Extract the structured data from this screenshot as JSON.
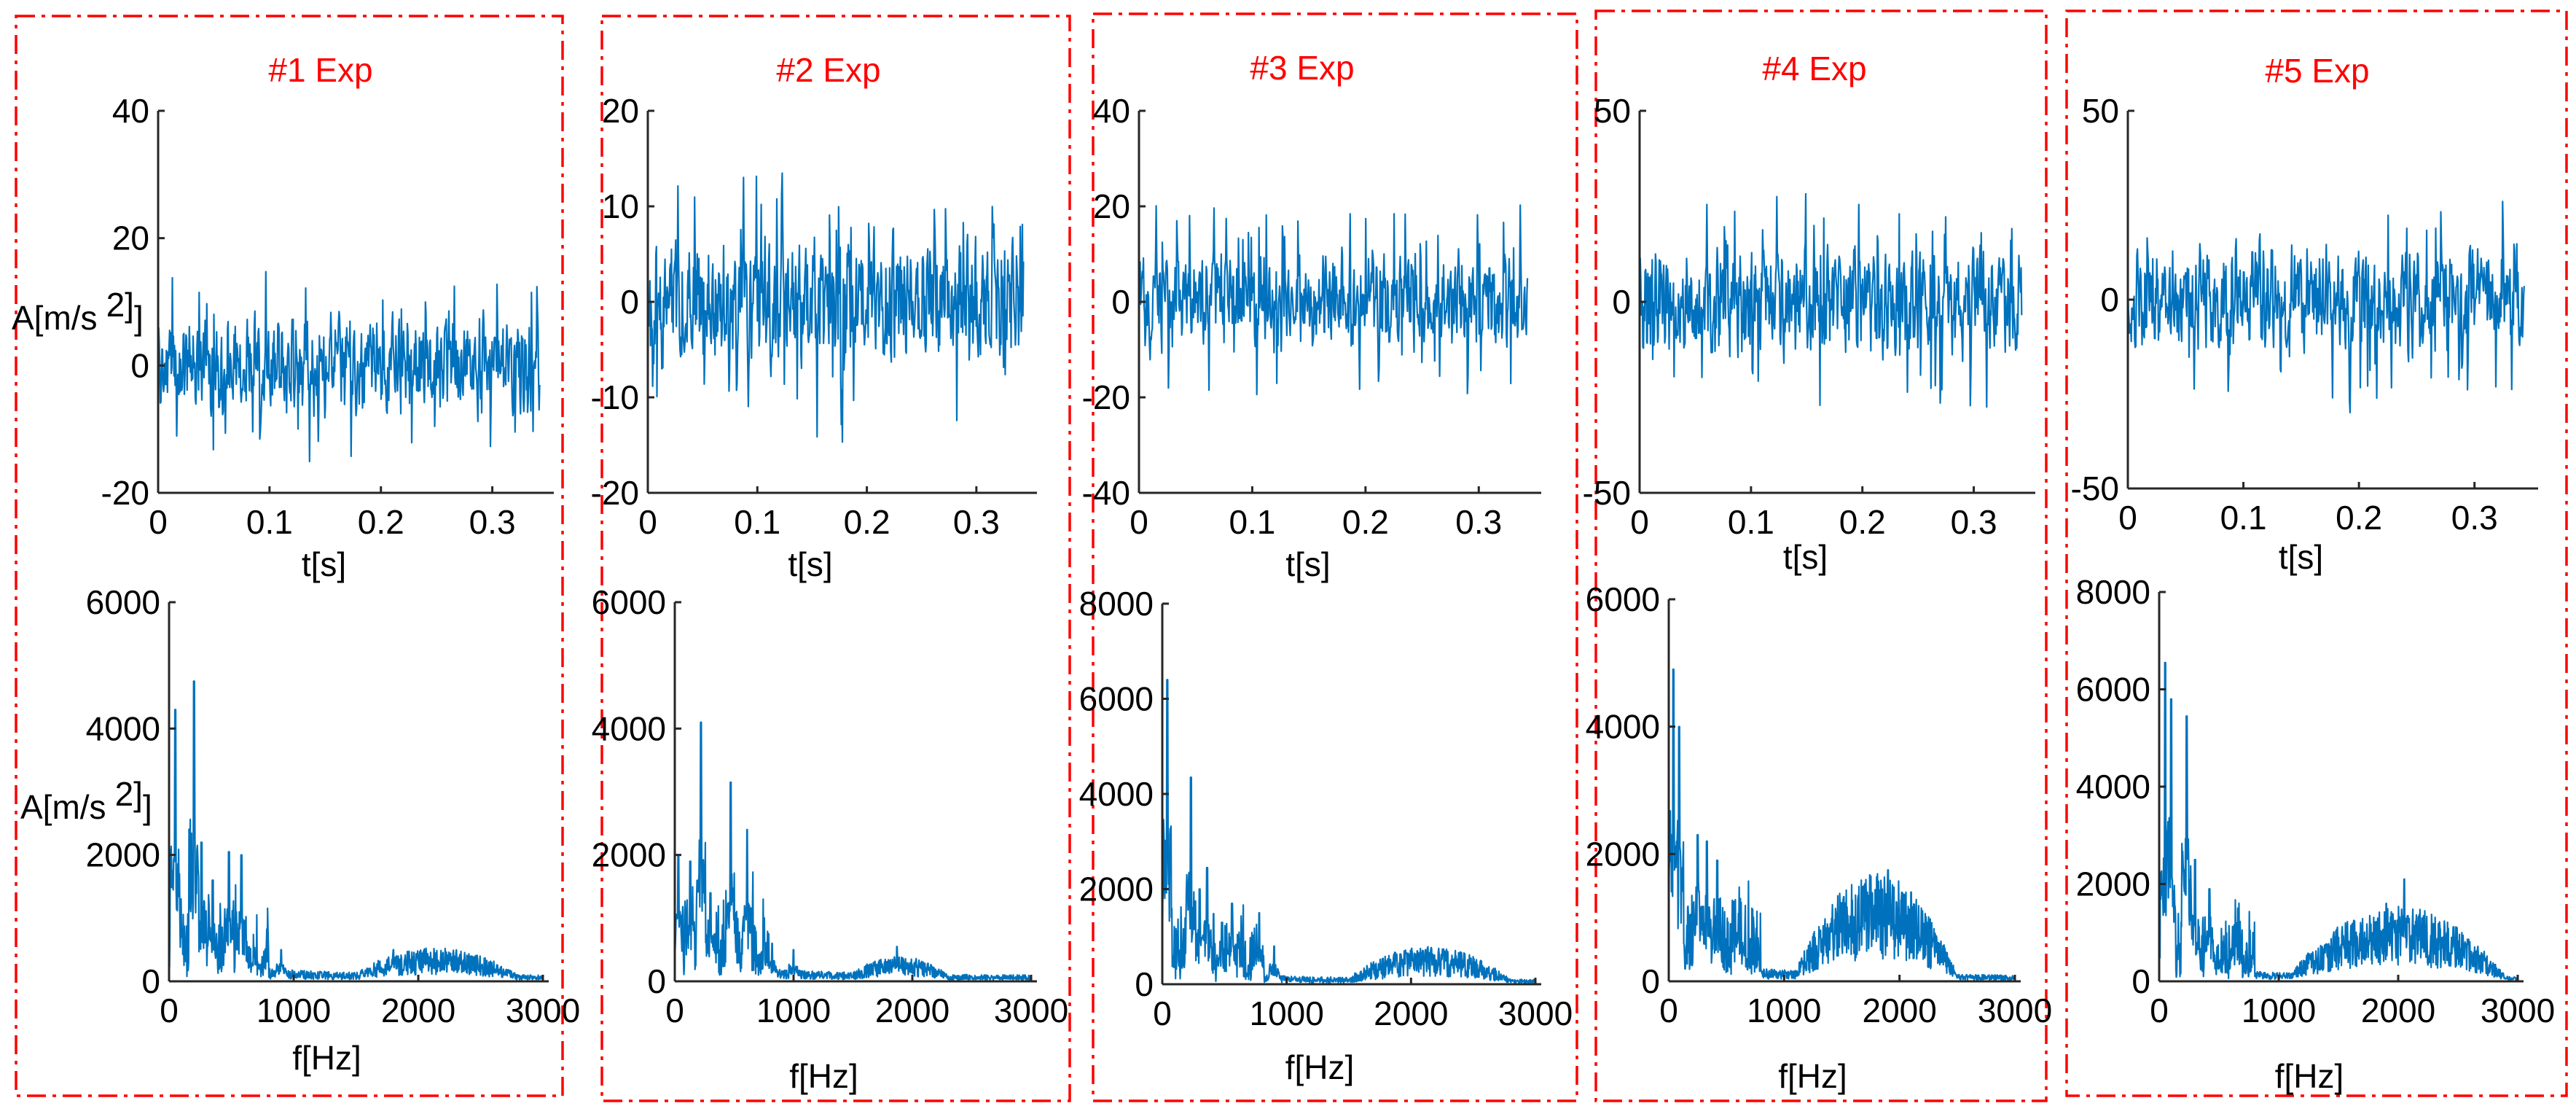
{
  "colors": {
    "trace": "#0072bd",
    "frame": "#ff0000",
    "title": "#ff0000",
    "axis": "#262626"
  },
  "chart_data": [
    {
      "title": "#1 Exp",
      "time": {
        "type": "line",
        "xlabel": "t[s]",
        "ylabel": "A[m/s 2]",
        "xlim": [
          0,
          0.35
        ],
        "ylim": [
          -20,
          40
        ],
        "xticks": [
          "0",
          "0.1",
          "0.2",
          "0.3"
        ],
        "yticks": [
          "40",
          "20",
          "0",
          "-20"
        ],
        "trend": {
          "mean": 0,
          "amp": 16
        }
      },
      "spectrum": {
        "type": "line",
        "xlabel": "f[Hz]",
        "ylabel": "A[m/s 2]",
        "xlim": [
          0,
          3000
        ],
        "ylim": [
          0,
          6000
        ],
        "xticks": [
          "0",
          "1000",
          "2000",
          "3000"
        ],
        "yticks": [
          "6000",
          "4000",
          "2000",
          "0"
        ],
        "peaks": [
          [
            50,
            4300
          ],
          [
            200,
            4750
          ],
          [
            260,
            2200
          ],
          [
            350,
            1600
          ],
          [
            480,
            2050
          ],
          [
            580,
            2000
          ],
          [
            900,
            500
          ],
          [
            1800,
            500
          ],
          [
            2100,
            350
          ]
        ],
        "band": {
          "from": 1500,
          "to": 2800,
          "level": 280
        }
      }
    },
    {
      "title": "#2 Exp",
      "time": {
        "type": "line",
        "xlabel": "t[s]",
        "ylabel": "",
        "xlim": [
          0,
          0.35
        ],
        "ylim": [
          -20,
          20
        ],
        "xticks": [
          "0",
          "0.1",
          "0.2",
          "0.3"
        ],
        "yticks": [
          "20",
          "10",
          "0",
          "-10",
          "-20"
        ],
        "trend": {
          "mean": 0,
          "amp": 14
        }
      },
      "spectrum": {
        "type": "line",
        "xlabel": "f[Hz]",
        "ylabel": "",
        "xlim": [
          0,
          3000
        ],
        "ylim": [
          0,
          6000
        ],
        "xticks": [
          "0",
          "1000",
          "2000",
          "3000"
        ],
        "yticks": [
          "6000",
          "4000",
          "2000",
          "0"
        ],
        "peaks": [
          [
            30,
            2000
          ],
          [
            130,
            1900
          ],
          [
            220,
            4100
          ],
          [
            300,
            1400
          ],
          [
            470,
            3150
          ],
          [
            610,
            2400
          ],
          [
            820,
            600
          ],
          [
            1000,
            500
          ],
          [
            1870,
            550
          ]
        ],
        "band": {
          "from": 1500,
          "to": 2300,
          "level": 180
        }
      }
    },
    {
      "title": "#3 Exp",
      "time": {
        "type": "line",
        "xlabel": "t[s]",
        "ylabel": "",
        "xlim": [
          0,
          0.35
        ],
        "ylim": [
          -40,
          40
        ],
        "xticks": [
          "0",
          "0.1",
          "0.2",
          "0.3"
        ],
        "yticks": [
          "40",
          "20",
          "0",
          "-20",
          "-40"
        ],
        "trend": {
          "mean": 0,
          "amp": 22
        }
      },
      "spectrum": {
        "type": "line",
        "xlabel": "f[Hz]",
        "ylabel": "",
        "xlim": [
          0,
          3000
        ],
        "ylim": [
          0,
          8000
        ],
        "xticks": [
          "0",
          "1000",
          "2000",
          "3000"
        ],
        "yticks": [
          "8000",
          "6000",
          "4000",
          "2000",
          "0"
        ],
        "peaks": [
          [
            40,
            6400
          ],
          [
            230,
            4350
          ],
          [
            300,
            2000
          ],
          [
            360,
            2450
          ],
          [
            480,
            1300
          ],
          [
            560,
            1700
          ],
          [
            780,
            1500
          ],
          [
            900,
            800
          ],
          [
            2050,
            700
          ]
        ],
        "band": {
          "from": 1500,
          "to": 2800,
          "level": 450
        }
      }
    },
    {
      "title": "#4 Exp",
      "time": {
        "type": "line",
        "xlabel": "t[s]",
        "ylabel": "",
        "xlim": [
          0,
          0.35
        ],
        "ylim": [
          -50,
          50
        ],
        "xticks": [
          "0",
          "0.1",
          "0.2",
          "0.3"
        ],
        "yticks": [
          "50",
          "0",
          "-50"
        ],
        "trend": {
          "mean": 0,
          "amp": 30
        }
      },
      "spectrum": {
        "type": "line",
        "xlabel": "f[Hz]",
        "ylabel": "",
        "xlim": [
          0,
          3000
        ],
        "ylim": [
          0,
          6000
        ],
        "xticks": [
          "0",
          "1000",
          "2000",
          "3000"
        ],
        "yticks": [
          "6000",
          "4000",
          "2000",
          "0"
        ],
        "peaks": [
          [
            40,
            4900
          ],
          [
            90,
            4000
          ],
          [
            250,
            2300
          ],
          [
            330,
            2200
          ],
          [
            420,
            1900
          ],
          [
            620,
            1300
          ],
          [
            1750,
            1650
          ],
          [
            1900,
            1750
          ],
          [
            2100,
            1400
          ]
        ],
        "band": {
          "from": 1100,
          "to": 2500,
          "level": 1050
        }
      }
    },
    {
      "title": "#5 Exp",
      "time": {
        "type": "line",
        "xlabel": "t[s]",
        "ylabel": "",
        "xlim": [
          0,
          0.35
        ],
        "ylim": [
          -50,
          50
        ],
        "xticks": [
          "0",
          "0.1",
          "0.2",
          "0.3"
        ],
        "yticks": [
          "50",
          "0",
          "-50"
        ],
        "trend": {
          "mean": 0,
          "amp": 30
        }
      },
      "spectrum": {
        "type": "line",
        "xlabel": "f[Hz]",
        "ylabel": "",
        "xlim": [
          0,
          3000
        ],
        "ylim": [
          0,
          8000
        ],
        "xticks": [
          "0",
          "1000",
          "2000",
          "3000"
        ],
        "yticks": [
          "8000",
          "6000",
          "4000",
          "2000",
          "0"
        ],
        "peaks": [
          [
            50,
            6550
          ],
          [
            100,
            5800
          ],
          [
            230,
            5450
          ],
          [
            300,
            2500
          ],
          [
            420,
            1900
          ],
          [
            650,
            1200
          ],
          [
            1900,
            1600
          ],
          [
            2050,
            2100
          ],
          [
            2200,
            1300
          ]
        ],
        "band": {
          "from": 1100,
          "to": 2900,
          "level": 950
        }
      }
    }
  ]
}
